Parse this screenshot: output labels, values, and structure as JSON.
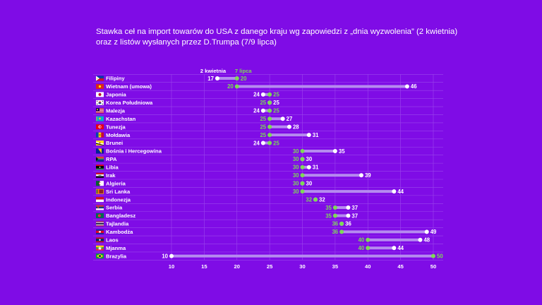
{
  "title_line1": "Stawka ceł na import towarów do USA z danego kraju wg zapowiedzi z „dnia wyzwolenia” (2 kwietnia)",
  "title_line2": "oraz z listów wysłanych  przez D.Trumpa (7/9 lipca)",
  "colors": {
    "background": "#7f0ce6",
    "april": "#ffffff",
    "july": "#7ed957",
    "connector": "#b58bef",
    "grid": "#9b46ec"
  },
  "chart_data": {
    "type": "dumbbell",
    "title": "Stawka ceł na import towarów do USA z danego kraju wg zapowiedzi z „dnia wyzwolenia” (2 kwietnia) oraz z listów wysłanych  przez D.Trumpa (7/9 lipca)",
    "xlim": [
      10,
      50
    ],
    "xticks": [
      "10",
      "15",
      "20",
      "25",
      "30",
      "35",
      "40",
      "45",
      "50"
    ],
    "series_names": {
      "april": "2 kwietnia",
      "july": "7 lipca"
    },
    "rows": [
      {
        "country": "Filipiny",
        "flag": "flag-philippines",
        "april": 17,
        "july": 20
      },
      {
        "country": "Wietnam (umowa)",
        "flag": "flag-vietnam",
        "april": 46,
        "july": 20
      },
      {
        "country": "Japonia",
        "flag": "flag-japan",
        "april": 24,
        "july": 25
      },
      {
        "country": "Korea Południowa",
        "flag": "flag-south-korea",
        "april": 25,
        "july": 25
      },
      {
        "country": "Malezja",
        "flag": "flag-malaysia",
        "april": 24,
        "july": 25
      },
      {
        "country": "Kazachstan",
        "flag": "flag-kazakhstan",
        "april": 27,
        "july": 25
      },
      {
        "country": "Tunezja",
        "flag": "flag-tunisia",
        "april": 28,
        "july": 25
      },
      {
        "country": "Mołdawia",
        "flag": "flag-moldova",
        "april": 31,
        "july": 25
      },
      {
        "country": "Brunei",
        "flag": "flag-brunei",
        "april": 24,
        "july": 25
      },
      {
        "country": "Bośnia i Hercegowina",
        "flag": "flag-bosnia",
        "april": 35,
        "july": 30
      },
      {
        "country": "RPA",
        "flag": "flag-south-africa",
        "april": 30,
        "july": 30
      },
      {
        "country": "Libia",
        "flag": "flag-libya",
        "april": 31,
        "july": 30
      },
      {
        "country": "Irak",
        "flag": "flag-iraq",
        "april": 39,
        "july": 30
      },
      {
        "country": "Algieria",
        "flag": "flag-algeria",
        "april": 30,
        "july": 30
      },
      {
        "country": "Sri Lanka",
        "flag": "flag-sri-lanka",
        "april": 44,
        "july": 30
      },
      {
        "country": "Indonezja",
        "flag": "flag-indonesia",
        "april": 32,
        "july": 32
      },
      {
        "country": "Serbia",
        "flag": "flag-serbia",
        "april": 37,
        "july": 35
      },
      {
        "country": "Bangladesz",
        "flag": "flag-bangladesh",
        "april": 37,
        "july": 35
      },
      {
        "country": "Tajlandia",
        "flag": "flag-thailand",
        "april": 36,
        "july": 36
      },
      {
        "country": "Kambodża",
        "flag": "flag-cambodia",
        "april": 49,
        "july": 36
      },
      {
        "country": "Laos",
        "flag": "flag-laos",
        "april": 48,
        "july": 40
      },
      {
        "country": "Mjanma",
        "flag": "flag-myanmar",
        "april": 44,
        "july": 40
      },
      {
        "country": "Brazylia",
        "flag": "flag-brazil",
        "april": 10,
        "july": 50
      }
    ]
  }
}
